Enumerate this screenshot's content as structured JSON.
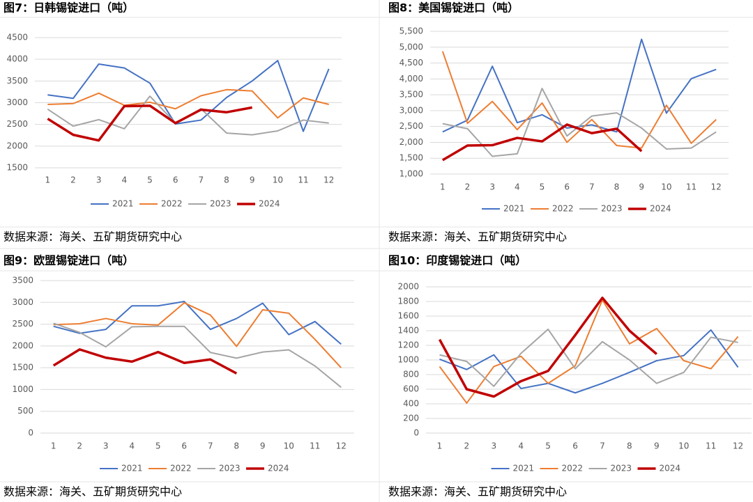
{
  "chart_data": [
    {
      "type": "line",
      "title": "图7：日韩锡锭进口（吨）",
      "source": "数据来源：海关、五矿期货研究中心",
      "categories": [
        "1",
        "2",
        "3",
        "4",
        "5",
        "6",
        "7",
        "8",
        "9",
        "10",
        "11",
        "12"
      ],
      "ylim": [
        1500,
        4500
      ],
      "yticks": [
        1500,
        2000,
        2500,
        3000,
        3500,
        4000,
        4500
      ],
      "grid": true,
      "legend": "bottom",
      "series": [
        {
          "name": "2021",
          "color": "#4472c4",
          "values": [
            3180,
            3100,
            3890,
            3800,
            3450,
            2510,
            2600,
            3120,
            3500,
            3970,
            2340,
            3780
          ]
        },
        {
          "name": "2022",
          "color": "#ed7d31",
          "values": [
            2960,
            2980,
            3220,
            2940,
            3010,
            2860,
            3160,
            3300,
            3270,
            2650,
            3110,
            2960
          ]
        },
        {
          "name": "2023",
          "color": "#a5a5a5",
          "values": [
            2850,
            2460,
            2610,
            2400,
            3150,
            2530,
            2860,
            2300,
            2260,
            2350,
            2600,
            2530
          ]
        },
        {
          "name": "2024",
          "color": "#c00000",
          "values": [
            2630,
            2260,
            2130,
            2920,
            2930,
            2530,
            2840,
            2780,
            2890,
            null,
            null,
            null
          ]
        }
      ]
    },
    {
      "type": "line",
      "title": "图8：美国锡锭进口（吨）",
      "source": "数据来源：海关、五矿期货研究中心",
      "categories": [
        "1",
        "2",
        "3",
        "4",
        "5",
        "6",
        "7",
        "8",
        "9",
        "10",
        "11",
        "12"
      ],
      "ylim": [
        1000,
        5500
      ],
      "yticks": [
        {
          "value": 1000,
          "label": "1,000"
        },
        {
          "value": 1500,
          "label": "1,500"
        },
        {
          "value": 2000,
          "label": "2,000"
        },
        {
          "value": 2500,
          "label": "2,500"
        },
        {
          "value": 3000,
          "label": "3,000"
        },
        {
          "value": 3500,
          "label": "3,500"
        },
        {
          "value": 4000,
          "label": "4,000"
        },
        {
          "value": 4500,
          "label": "4,500"
        },
        {
          "value": 5000,
          "label": "5,000"
        },
        {
          "value": 5500,
          "label": "5,500"
        }
      ],
      "grid": true,
      "legend": "bottom",
      "series": [
        {
          "name": "2021",
          "color": "#4472c4",
          "values": [
            2330,
            2700,
            4400,
            2620,
            2870,
            2450,
            2550,
            2330,
            5250,
            2920,
            4010,
            4300
          ]
        },
        {
          "name": "2022",
          "color": "#ed7d31",
          "values": [
            4870,
            2600,
            3290,
            2400,
            3240,
            2000,
            2720,
            1900,
            1820,
            3170,
            1970,
            2720
          ]
        },
        {
          "name": "2023",
          "color": "#a5a5a5",
          "values": [
            2590,
            2430,
            1560,
            1640,
            3700,
            2200,
            2830,
            2930,
            2450,
            1790,
            1820,
            2330
          ]
        },
        {
          "name": "2024",
          "color": "#c00000",
          "values": [
            1440,
            1900,
            1910,
            2140,
            2030,
            2560,
            2290,
            2430,
            1720,
            null,
            null,
            null
          ]
        }
      ]
    },
    {
      "type": "line",
      "title": "图9：欧盟锡锭进口（吨）",
      "source": "数据来源：海关、五矿期货研究中心",
      "categories": [
        "1",
        "2",
        "3",
        "4",
        "5",
        "6",
        "7",
        "8",
        "9",
        "10",
        "11",
        "12"
      ],
      "ylim": [
        0,
        3500
      ],
      "yticks": [
        0,
        500,
        1000,
        1500,
        2000,
        2500,
        3000,
        3500
      ],
      "grid": true,
      "legend": "bottom",
      "series": [
        {
          "name": "2021",
          "color": "#4472c4",
          "values": [
            2450,
            2290,
            2380,
            2920,
            2920,
            3020,
            2380,
            2630,
            2980,
            2260,
            2560,
            2040
          ]
        },
        {
          "name": "2022",
          "color": "#ed7d31",
          "values": [
            2490,
            2510,
            2630,
            2510,
            2480,
            2990,
            2710,
            1990,
            2830,
            2750,
            2150,
            1500
          ]
        },
        {
          "name": "2023",
          "color": "#a5a5a5",
          "values": [
            2520,
            2310,
            1980,
            2440,
            2450,
            2450,
            1850,
            1720,
            1860,
            1910,
            1540,
            1050
          ]
        },
        {
          "name": "2024",
          "color": "#c00000",
          "values": [
            1550,
            1920,
            1730,
            1640,
            1860,
            1610,
            1690,
            1370,
            null,
            null,
            null,
            null
          ]
        }
      ]
    },
    {
      "type": "line",
      "title": "图10：印度锡锭进口（吨）",
      "source": "数据来源：海关、五矿期货研究中心",
      "categories": [
        "1",
        "2",
        "3",
        "4",
        "5",
        "6",
        "7",
        "8",
        "9",
        "10",
        "11",
        "12"
      ],
      "ylim": [
        0,
        2000
      ],
      "yticks": [
        0,
        200,
        400,
        600,
        800,
        1000,
        1200,
        1400,
        1600,
        1800,
        2000
      ],
      "grid": true,
      "legend": "bottom",
      "series": [
        {
          "name": "2021",
          "color": "#4472c4",
          "values": [
            1010,
            870,
            1070,
            610,
            680,
            550,
            680,
            830,
            990,
            1060,
            1410,
            900
          ]
        },
        {
          "name": "2022",
          "color": "#ed7d31",
          "values": [
            910,
            410,
            910,
            1050,
            680,
            920,
            1820,
            1220,
            1430,
            990,
            880,
            1320
          ]
        },
        {
          "name": "2023",
          "color": "#a5a5a5",
          "values": [
            1070,
            980,
            640,
            1090,
            1420,
            880,
            1250,
            1000,
            680,
            830,
            1310,
            1240
          ]
        },
        {
          "name": "2024",
          "color": "#c00000",
          "values": [
            1280,
            600,
            500,
            710,
            850,
            1340,
            1850,
            1400,
            1080,
            null,
            null,
            null
          ]
        }
      ]
    }
  ]
}
